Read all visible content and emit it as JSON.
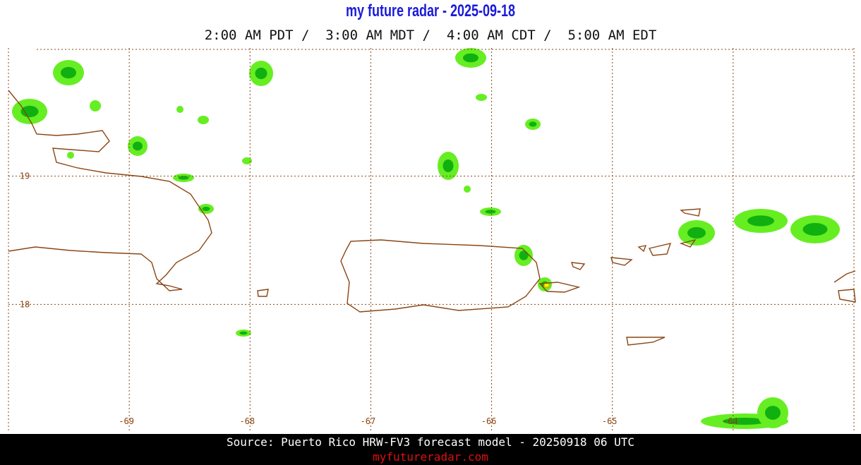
{
  "header": {
    "title": "my future radar - 2025-09-18",
    "subtitle": "2:00 AM PDT /  3:00 AM MDT /  4:00 AM CDT /  5:00 AM EDT"
  },
  "map": {
    "lon_range": [
      -70,
      -63
    ],
    "lat_range": [
      17,
      20
    ],
    "lon_ticks": [
      -69,
      -68,
      -67,
      -66,
      -65,
      -64
    ],
    "lat_ticks": [
      19,
      18
    ]
  },
  "footer": {
    "source": "Source: Puerto Rico HRW-FV3 forecast model - 20250918 06 UTC",
    "link": "myfutureradar.com"
  }
}
